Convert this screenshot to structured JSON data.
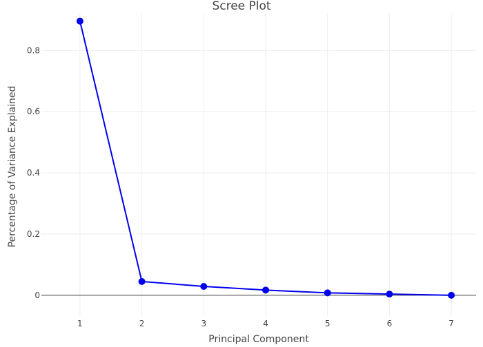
{
  "chart_data": {
    "type": "line",
    "title": "Scree Plot",
    "xlabel": "Principal Component",
    "ylabel": "Percentage of Variance Explained",
    "x": [
      1,
      2,
      3,
      4,
      5,
      6,
      7
    ],
    "series": [
      {
        "values": [
          0.896,
          0.045,
          0.029,
          0.017,
          0.008,
          0.004,
          0.0
        ]
      }
    ],
    "xlim": [
      0.6,
      7.4
    ],
    "ylim": [
      -0.07,
      0.92
    ],
    "x_ticks": [
      "1",
      "2",
      "3",
      "4",
      "5",
      "6",
      "7"
    ],
    "y_ticks": [
      "0",
      "0.2",
      "0.4",
      "0.6",
      "0.8"
    ],
    "grid": true,
    "line_color": "#0000ee",
    "marker_color": "#0000ee",
    "markers": true
  }
}
